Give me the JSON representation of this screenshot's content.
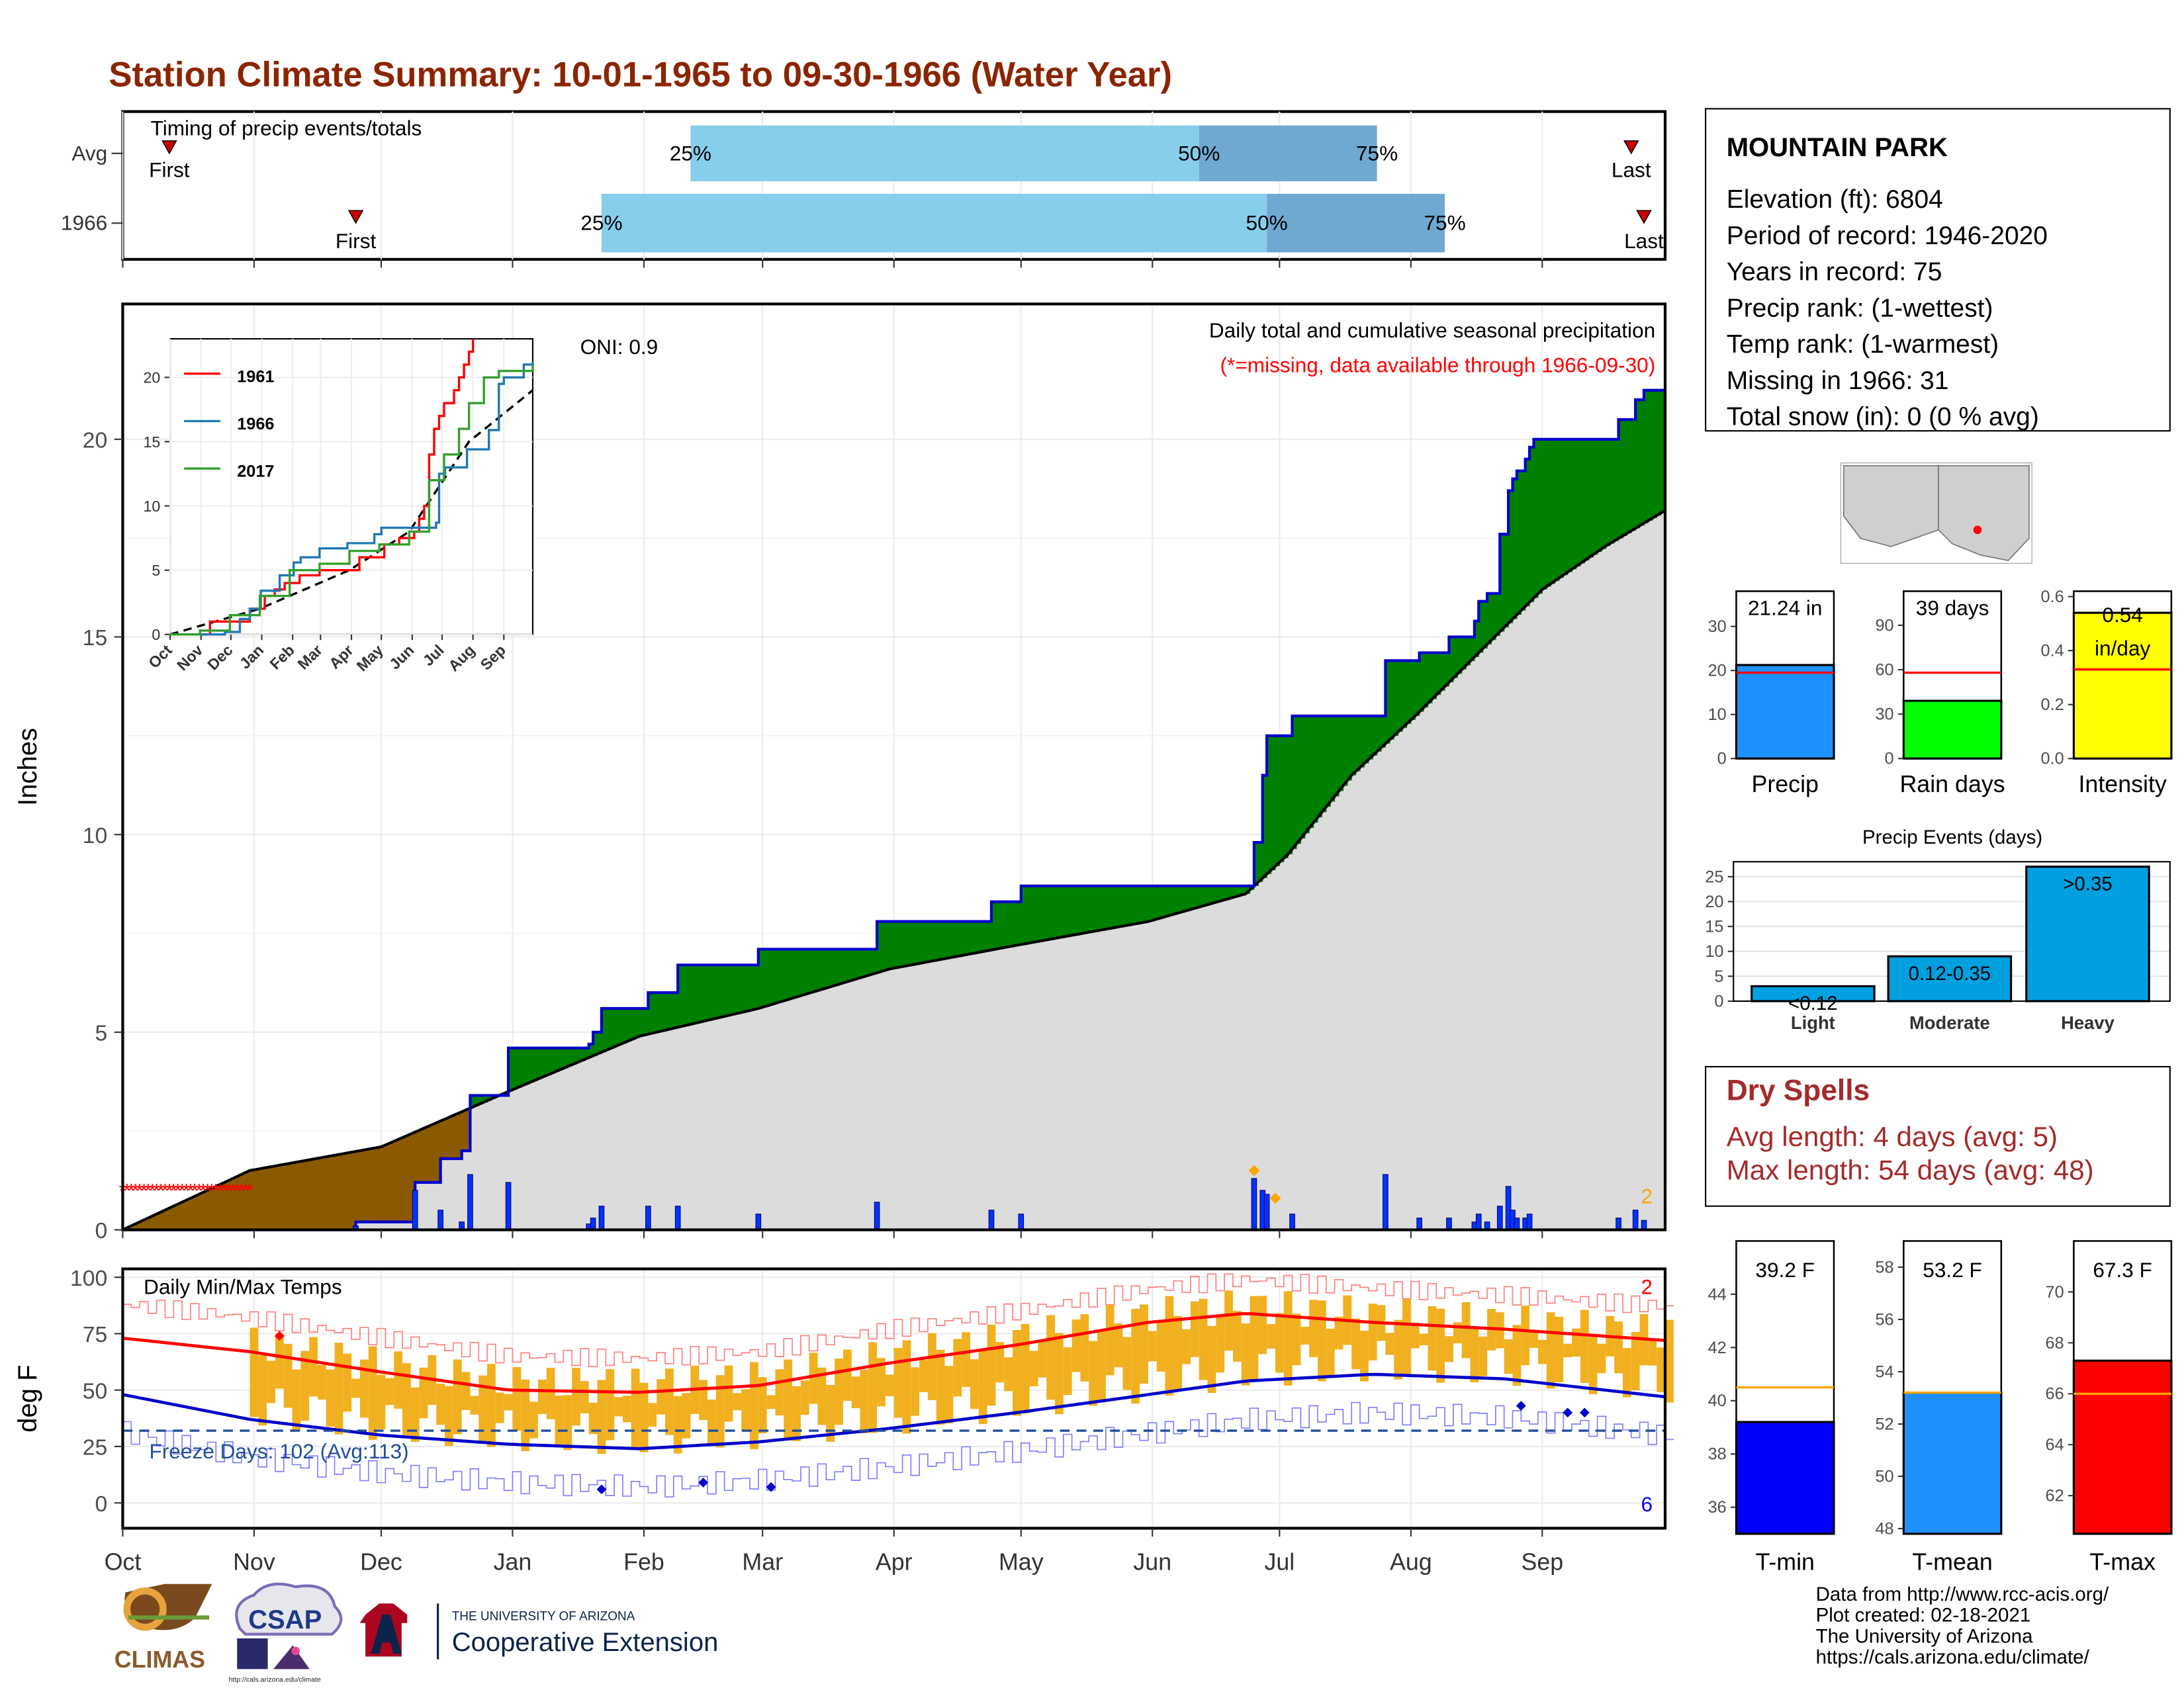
{
  "title": "Station Climate Summary: 10-01-1965 to 09-30-1966 (Water Year)",
  "colors": {
    "title": "#8b2500",
    "precip_blue": "#1e90ff",
    "green": "#008000",
    "brown": "#8b5a00",
    "gray_fill": "#dcdcdc",
    "light_blue": "#87ceeb",
    "mid_blue": "#6fa8d0",
    "dry_red": "#a52a2a",
    "orange": "#ffa500"
  },
  "timing": {
    "title": "Timing of precip events/totals",
    "rows": [
      {
        "label": "Avg",
        "first_label": "First",
        "last_label": "Last",
        "p25": "25%",
        "p50": "50%",
        "p75": "75%"
      },
      {
        "label": "1966",
        "first_label": "First",
        "last_label": "Last",
        "p25": "25%",
        "p50": "50%",
        "p75": "75%"
      }
    ],
    "avg_doy": {
      "first": 11,
      "p25": 134,
      "p50": 254,
      "p75": 296,
      "last": 356
    },
    "obs_doy": {
      "first": 55,
      "p25": 113,
      "p50": 270,
      "p75": 312,
      "last": 359
    }
  },
  "main_chart": {
    "ylabel": "Inches",
    "label_top": "Daily total and cumulative seasonal precipitation",
    "label_missing": "(*=missing, data available through 1966-09-30)",
    "oni": "ONI: 0.9",
    "yticks": [
      "0",
      "5",
      "10",
      "15",
      "20"
    ],
    "months": [
      "Oct",
      "Nov",
      "Dec",
      "Jan",
      "Feb",
      "Mar",
      "Apr",
      "May",
      "Jun",
      "Jul",
      "Aug",
      "Sep"
    ],
    "missing_count": "2"
  },
  "chart_data": [
    {
      "type": "area",
      "title": "Daily total and cumulative seasonal precipitation",
      "ylabel": "Inches",
      "ylim": [
        0,
        23
      ],
      "xlim_doy": [
        0,
        364
      ],
      "cumulative_observed": [
        [
          0,
          0
        ],
        [
          55,
          0
        ],
        [
          55,
          0.2
        ],
        [
          69,
          0.2
        ],
        [
          69,
          1.2
        ],
        [
          75,
          1.2
        ],
        [
          75,
          1.8
        ],
        [
          80,
          1.8
        ],
        [
          80,
          2.0
        ],
        [
          82,
          2.0
        ],
        [
          82,
          3.4
        ],
        [
          91,
          3.4
        ],
        [
          91,
          4.6
        ],
        [
          110,
          4.6
        ],
        [
          110,
          4.7
        ],
        [
          111,
          4.7
        ],
        [
          111,
          5.0
        ],
        [
          113,
          5.0
        ],
        [
          113,
          5.6
        ],
        [
          124,
          5.6
        ],
        [
          124,
          6.0
        ],
        [
          131,
          6.0
        ],
        [
          131,
          6.7
        ],
        [
          150,
          6.7
        ],
        [
          150,
          7.1
        ],
        [
          178,
          7.1
        ],
        [
          178,
          7.8
        ],
        [
          205,
          7.8
        ],
        [
          205,
          8.3
        ],
        [
          212,
          8.3
        ],
        [
          212,
          8.7
        ],
        [
          267,
          8.7
        ],
        [
          267,
          9.8
        ],
        [
          269,
          9.8
        ],
        [
          269,
          11.5
        ],
        [
          270,
          11.5
        ],
        [
          270,
          12.5
        ],
        [
          276,
          12.5
        ],
        [
          276,
          13.0
        ],
        [
          298,
          13.0
        ],
        [
          298,
          14.4
        ],
        [
          306,
          14.4
        ],
        [
          306,
          14.6
        ],
        [
          313,
          14.6
        ],
        [
          313,
          15.0
        ],
        [
          319,
          15.0
        ],
        [
          319,
          15.4
        ],
        [
          320,
          15.4
        ],
        [
          320,
          15.9
        ],
        [
          322,
          15.9
        ],
        [
          322,
          16.1
        ],
        [
          325,
          16.1
        ],
        [
          325,
          17.6
        ],
        [
          327,
          17.6
        ],
        [
          327,
          18.7
        ],
        [
          328,
          18.7
        ],
        [
          328,
          19.0
        ],
        [
          329,
          19.0
        ],
        [
          329,
          19.2
        ],
        [
          331,
          19.2
        ],
        [
          331,
          19.5
        ],
        [
          332,
          19.5
        ],
        [
          332,
          19.8
        ],
        [
          333,
          19.8
        ],
        [
          333,
          20.0
        ],
        [
          353,
          20.0
        ],
        [
          353,
          20.5
        ],
        [
          357,
          20.5
        ],
        [
          357,
          21.0
        ],
        [
          359,
          21.0
        ],
        [
          359,
          21.24
        ],
        [
          364,
          21.24
        ]
      ],
      "cumulative_average": [
        [
          0,
          0
        ],
        [
          30,
          1.5
        ],
        [
          61,
          2.1
        ],
        [
          91,
          3.5
        ],
        [
          122,
          4.9
        ],
        [
          150,
          5.6
        ],
        [
          181,
          6.6
        ],
        [
          211,
          7.2
        ],
        [
          242,
          7.8
        ],
        [
          265,
          8.5
        ],
        [
          275,
          9.5
        ],
        [
          290,
          11.5
        ],
        [
          305,
          13.0
        ],
        [
          320,
          14.6
        ],
        [
          335,
          16.2
        ],
        [
          350,
          17.3
        ],
        [
          364,
          18.2
        ]
      ],
      "daily_precip": [
        [
          55,
          0.1
        ],
        [
          69,
          1.0
        ],
        [
          75,
          0.5
        ],
        [
          80,
          0.2
        ],
        [
          82,
          1.4
        ],
        [
          91,
          1.2
        ],
        [
          110,
          0.15
        ],
        [
          111,
          0.3
        ],
        [
          113,
          0.6
        ],
        [
          124,
          0.6
        ],
        [
          131,
          0.6
        ],
        [
          150,
          0.4
        ],
        [
          178,
          0.7
        ],
        [
          205,
          0.5
        ],
        [
          212,
          0.4
        ],
        [
          267,
          1.3
        ],
        [
          269,
          1.0
        ],
        [
          270,
          0.9
        ],
        [
          276,
          0.4
        ],
        [
          298,
          1.4
        ],
        [
          306,
          0.3
        ],
        [
          313,
          0.3
        ],
        [
          319,
          0.2
        ],
        [
          320,
          0.4
        ],
        [
          322,
          0.2
        ],
        [
          325,
          0.6
        ],
        [
          327,
          1.1
        ],
        [
          328,
          0.5
        ],
        [
          329,
          0.3
        ],
        [
          331,
          0.3
        ],
        [
          332,
          0.4
        ],
        [
          353,
          0.3
        ],
        [
          357,
          0.5
        ],
        [
          359,
          0.24
        ]
      ],
      "missing_days": [
        0,
        30
      ],
      "missing_value_marker": 1.0
    },
    {
      "type": "line",
      "title": "",
      "series": [
        {
          "name": "1961",
          "color": "#ff0000",
          "values": [
            [
              0,
              0
            ],
            [
              40,
              1
            ],
            [
              70,
              1
            ],
            [
              80,
              2
            ],
            [
              95,
              3
            ],
            [
              105,
              3.5
            ],
            [
              115,
              4
            ],
            [
              130,
              4.6
            ],
            [
              150,
              5
            ],
            [
              170,
              5
            ],
            [
              190,
              6
            ],
            [
              215,
              7
            ],
            [
              230,
              7.5
            ],
            [
              245,
              8
            ],
            [
              250,
              9
            ],
            [
              255,
              10
            ],
            [
              260,
              14
            ],
            [
              265,
              16
            ],
            [
              270,
              17
            ],
            [
              275,
              18
            ],
            [
              285,
              19
            ],
            [
              290,
              20
            ],
            [
              295,
              21
            ],
            [
              300,
              22
            ],
            [
              304,
              23.5
            ]
          ]
        },
        {
          "name": "1966",
          "color": "#1f78b4",
          "values": [
            [
              0,
              0
            ],
            [
              55,
              0.2
            ],
            [
              70,
              1.2
            ],
            [
              80,
              2
            ],
            [
              91,
              3.4
            ],
            [
              110,
              4.6
            ],
            [
              124,
              5.6
            ],
            [
              131,
              6
            ],
            [
              150,
              6.7
            ],
            [
              178,
              7.1
            ],
            [
              205,
              7.8
            ],
            [
              212,
              8.3
            ],
            [
              267,
              8.7
            ],
            [
              270,
              12.5
            ],
            [
              276,
              13
            ],
            [
              298,
              14.4
            ],
            [
              320,
              15.9
            ],
            [
              330,
              19.5
            ],
            [
              335,
              20
            ],
            [
              355,
              21
            ],
            [
              364,
              21.24
            ]
          ]
        },
        {
          "name": "2017",
          "color": "#33a02c",
          "values": [
            [
              0,
              0
            ],
            [
              30,
              0.3
            ],
            [
              60,
              1.5
            ],
            [
              90,
              3
            ],
            [
              120,
              5
            ],
            [
              150,
              5.5
            ],
            [
              180,
              6.5
            ],
            [
              210,
              7
            ],
            [
              240,
              8
            ],
            [
              260,
              12
            ],
            [
              275,
              14
            ],
            [
              290,
              16
            ],
            [
              300,
              18
            ],
            [
              315,
              20
            ],
            [
              330,
              20.5
            ],
            [
              364,
              21
            ]
          ]
        }
      ],
      "average_dashed": [
        [
          0,
          0
        ],
        [
          90,
          2
        ],
        [
          180,
          5
        ],
        [
          240,
          8
        ],
        [
          300,
          15
        ],
        [
          364,
          19
        ]
      ],
      "yticks": [
        0,
        5,
        10,
        15,
        20
      ],
      "ylim": [
        0,
        23
      ]
    },
    {
      "type": "line",
      "title": "Daily Min/Max Temps",
      "ylabel": "deg F",
      "ylim": [
        -10,
        100
      ],
      "yticks": [
        0,
        25,
        50,
        75,
        100
      ],
      "avg_max": [
        [
          0,
          73
        ],
        [
          30,
          67
        ],
        [
          61,
          58
        ],
        [
          91,
          50
        ],
        [
          122,
          49
        ],
        [
          150,
          52
        ],
        [
          181,
          62
        ],
        [
          211,
          70
        ],
        [
          242,
          80
        ],
        [
          265,
          84
        ],
        [
          295,
          80
        ],
        [
          326,
          77
        ],
        [
          364,
          72
        ]
      ],
      "avg_min": [
        [
          0,
          48
        ],
        [
          30,
          37
        ],
        [
          61,
          30
        ],
        [
          91,
          26
        ],
        [
          122,
          24
        ],
        [
          150,
          27
        ],
        [
          181,
          33
        ],
        [
          211,
          40
        ],
        [
          242,
          48
        ],
        [
          265,
          54
        ],
        [
          295,
          57
        ],
        [
          326,
          55
        ],
        [
          364,
          47
        ]
      ],
      "freeze_line": 32,
      "freeze_label": "Freeze Days: 102 (Avg:113)",
      "missing_max": "2",
      "missing_min": "6"
    },
    {
      "type": "bar",
      "title": "",
      "categories": [
        "Precip",
        "Rain days",
        "Intensity"
      ],
      "values": [
        21.24,
        39,
        0.54
      ],
      "averages": [
        19.5,
        58,
        0.33
      ],
      "value_labels": [
        "21.24 in",
        "39 days",
        "0.54 in/day"
      ],
      "ylims": [
        [
          0,
          38
        ],
        [
          0,
          113
        ],
        [
          0,
          0.62
        ]
      ]
    },
    {
      "type": "bar",
      "title": "Precip Events (days)",
      "categories": [
        "Light",
        "Moderate",
        "Heavy"
      ],
      "values": [
        3,
        9,
        27
      ],
      "value_labels": [
        "<0.12",
        "0.12-0.35",
        ">0.35"
      ],
      "yticks": [
        0,
        5,
        10,
        15,
        20,
        25
      ]
    },
    {
      "type": "bar",
      "title": "",
      "categories": [
        "T-min",
        "T-mean",
        "T-max"
      ],
      "values": [
        39.2,
        53.2,
        67.3
      ],
      "averages": [
        40.5,
        53.2,
        66.0
      ],
      "value_labels": [
        "39.2 F",
        "53.2 F",
        "67.3 F"
      ]
    }
  ],
  "station": {
    "name": "MOUNTAIN PARK",
    "lines": [
      "Elevation (ft): 6804",
      "Period of record: 1946-2020",
      "Years in record: 75",
      "Precip rank:  (1-wettest)",
      "Temp rank:  (1-warmest)",
      "Missing in 1966: 31",
      "Total snow (in): 0 (0 % avg)"
    ]
  },
  "dry_spells": {
    "title": "Dry Spells",
    "avg_line": "Avg length: 4 days (avg: 5)",
    "max_line": "Max length: 54 days (avg: 48)"
  },
  "footer": {
    "lines": [
      "Data from http://www.rcc-acis.org/",
      "Plot created: 02-18-2021",
      "The University of Arizona",
      "https://cals.arizona.edu/climate/"
    ],
    "logo_climas": "CLIMAS",
    "logo_csap": "CSAP",
    "logo_csap_url": "http://cals.arizona.edu/climate",
    "ua_small": "THE UNIVERSITY OF ARIZONA",
    "ua_big": "Cooperative Extension"
  }
}
